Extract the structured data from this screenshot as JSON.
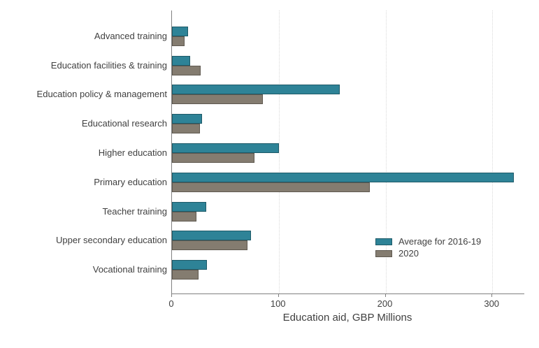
{
  "chart_data": {
    "type": "bar",
    "orientation": "horizontal",
    "title": "",
    "xlabel": "Education aid, GBP Millions",
    "ylabel": "",
    "categories": [
      "Advanced training",
      "Education facilities & training",
      "Education policy & management",
      "Educational research",
      "Higher education",
      "Primary education",
      "Teacher training",
      "Upper secondary education",
      "Vocational training"
    ],
    "series": [
      {
        "name": "Average for 2016-19",
        "color": "#2E8397",
        "border_color": "#1E5A68",
        "values": [
          15,
          17,
          157,
          28,
          100,
          320,
          32,
          74,
          33
        ]
      },
      {
        "name": "2020",
        "color": "#847C70",
        "border_color": "#5F5950",
        "values": [
          12,
          27,
          85,
          26,
          77,
          185,
          23,
          71,
          25
        ]
      }
    ],
    "x_ticks": [
      0,
      100,
      200,
      300
    ],
    "xlim": [
      0,
      330
    ],
    "grid": "vertical dotted gridlines at x ticks",
    "legend_position": "inside plot, center-right",
    "axis_color": "#808080",
    "gridline_color": "#D9D9D9",
    "text_color": "#404040"
  }
}
